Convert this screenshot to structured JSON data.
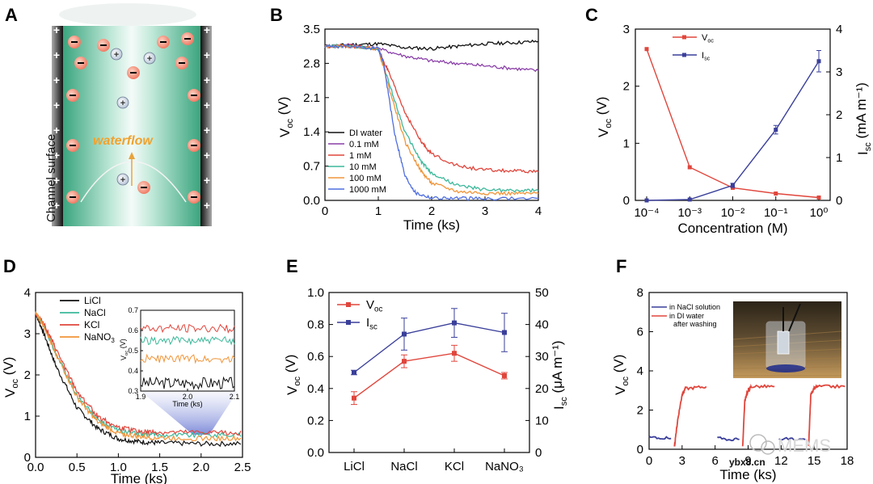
{
  "panels": {
    "A": {
      "label": "A",
      "channel_label": "Channel surface",
      "flow_label": "waterflow"
    },
    "B": {
      "label": "B"
    },
    "C": {
      "label": "C"
    },
    "D": {
      "label": "D"
    },
    "E": {
      "label": "E"
    },
    "F": {
      "label": "F",
      "photo_desc_icon": "beaker-photo"
    }
  },
  "watermark": {
    "text": "MEMS",
    "site": "ybx8.cn"
  },
  "colors": {
    "black": "#111111",
    "purple": "#8a3fa8",
    "red": "#e0463c",
    "teal": "#3cb89a",
    "orange": "#f0953a",
    "blue": "#4f6ee0",
    "navy": "#3a3f9a",
    "green": "#2f9e86"
  },
  "chart_data": [
    {
      "id": "B",
      "type": "line",
      "xlabel": "Time (ks)",
      "ylabel": "Voc (V)",
      "xlim": [
        0,
        4
      ],
      "ylim": [
        0,
        3.5
      ],
      "xticks": [
        "0",
        "1",
        "2",
        "3",
        "4"
      ],
      "yticks": [
        "0.0",
        "0.7",
        "1.4",
        "2.1",
        "2.8",
        "3.5"
      ],
      "series": [
        {
          "name": "DI water",
          "color": "#111111",
          "x": [
            0,
            0.5,
            1,
            1.5,
            2,
            2.5,
            3,
            3.5,
            4
          ],
          "y": [
            3.15,
            3.18,
            3.2,
            3.12,
            3.1,
            3.15,
            3.2,
            3.22,
            3.25
          ]
        },
        {
          "name": "0.1 mM",
          "color": "#8a3fa8",
          "x": [
            0,
            0.5,
            1,
            1.5,
            2,
            2.5,
            3,
            3.5,
            4
          ],
          "y": [
            3.15,
            3.18,
            3.1,
            2.95,
            2.85,
            2.8,
            2.75,
            2.7,
            2.65
          ]
        },
        {
          "name": "1 mM",
          "color": "#e0463c",
          "x": [
            0,
            0.5,
            1,
            1.2,
            1.5,
            1.8,
            2,
            2.5,
            3,
            3.5,
            4
          ],
          "y": [
            3.15,
            3.15,
            3.1,
            2.6,
            1.8,
            1.2,
            0.95,
            0.7,
            0.62,
            0.6,
            0.58
          ]
        },
        {
          "name": "10 mM",
          "color": "#3cb89a",
          "x": [
            0,
            0.5,
            1,
            1.2,
            1.5,
            1.8,
            2,
            2.5,
            3,
            3.5,
            4
          ],
          "y": [
            3.15,
            3.15,
            3.1,
            2.4,
            1.4,
            0.8,
            0.55,
            0.3,
            0.22,
            0.2,
            0.2
          ]
        },
        {
          "name": "100 mM",
          "color": "#f0953a",
          "x": [
            0,
            0.5,
            1,
            1.2,
            1.5,
            1.8,
            2,
            2.5,
            3,
            3.5,
            4
          ],
          "y": [
            3.15,
            3.15,
            3.1,
            2.3,
            1.2,
            0.6,
            0.35,
            0.18,
            0.15,
            0.14,
            0.14
          ]
        },
        {
          "name": "1000 mM",
          "color": "#4f6ee0",
          "x": [
            0,
            0.5,
            1,
            1.1,
            1.3,
            1.5,
            1.7,
            2,
            2.5,
            3,
            4
          ],
          "y": [
            3.15,
            3.15,
            3.1,
            2.8,
            1.4,
            0.5,
            0.15,
            0.05,
            0.04,
            0.04,
            0.04
          ]
        }
      ]
    },
    {
      "id": "C",
      "type": "line",
      "xlabel": "Concentration (M)",
      "ylabel": "Voc (V)",
      "y2label": "Isc (mA m⁻¹)",
      "x": [
        -4,
        -3,
        -2,
        -1,
        0
      ],
      "xticks": [
        "10⁻⁴",
        "10⁻³",
        "10⁻²",
        "10⁻¹",
        "10⁰"
      ],
      "ylim": [
        0,
        3
      ],
      "y2lim": [
        0,
        4
      ],
      "yticks": [
        "0",
        "1",
        "2",
        "3"
      ],
      "y2ticks": [
        "0",
        "1",
        "2",
        "3",
        "4"
      ],
      "series": [
        {
          "name": "Voc",
          "color": "#e0463c",
          "axis": "left",
          "values": [
            2.65,
            0.58,
            0.22,
            0.12,
            0.05
          ]
        },
        {
          "name": "Isc",
          "color": "#3a3f9a",
          "axis": "right",
          "values": [
            0.0,
            0.02,
            0.35,
            1.65,
            3.25
          ],
          "errors": [
            0,
            0,
            0.05,
            0.1,
            0.25
          ]
        }
      ]
    },
    {
      "id": "D",
      "type": "line",
      "xlabel": "Time (ks)",
      "ylabel": "Voc (V)",
      "xlim": [
        0,
        2.5
      ],
      "ylim": [
        0,
        4
      ],
      "xticks": [
        "0.0",
        "0.5",
        "1.0",
        "1.5",
        "2.0",
        "2.5"
      ],
      "yticks": [
        "0",
        "1",
        "2",
        "3",
        "4"
      ],
      "series": [
        {
          "name": "LiCl",
          "color": "#111111",
          "x": [
            0,
            0.1,
            0.25,
            0.5,
            0.75,
            1,
            1.25,
            1.5,
            2,
            2.5
          ],
          "y": [
            3.5,
            3.0,
            2.2,
            1.2,
            0.7,
            0.45,
            0.38,
            0.35,
            0.33,
            0.33
          ]
        },
        {
          "name": "NaCl",
          "color": "#3cb89a",
          "x": [
            0,
            0.1,
            0.25,
            0.5,
            0.75,
            1,
            1.25,
            1.5,
            2,
            2.5
          ],
          "y": [
            3.5,
            3.2,
            2.5,
            1.5,
            0.9,
            0.65,
            0.57,
            0.55,
            0.55,
            0.55
          ]
        },
        {
          "name": "KCl",
          "color": "#e0463c",
          "x": [
            0,
            0.1,
            0.25,
            0.5,
            0.75,
            1,
            1.25,
            1.5,
            2,
            2.5
          ],
          "y": [
            3.5,
            3.25,
            2.6,
            1.6,
            1.0,
            0.72,
            0.63,
            0.6,
            0.6,
            0.6
          ]
        },
        {
          "name": "NaNO3",
          "color": "#f0953a",
          "x": [
            0,
            0.1,
            0.25,
            0.5,
            0.75,
            1,
            1.25,
            1.5,
            2,
            2.5
          ],
          "y": [
            3.5,
            3.2,
            2.5,
            1.45,
            0.85,
            0.58,
            0.5,
            0.47,
            0.46,
            0.46
          ]
        }
      ],
      "inset": {
        "xlim": [
          1.9,
          2.1
        ],
        "ylim": [
          0.3,
          0.7
        ],
        "xticks": [
          "1.9",
          "2.0",
          "2.1"
        ],
        "yticks": [
          "0.3",
          "0.4",
          "0.5",
          "0.6",
          "0.7"
        ],
        "xlabel": "Time (ks)",
        "ylabel": "Voc (V)"
      }
    },
    {
      "id": "E",
      "type": "line",
      "categories": [
        "LiCl",
        "NaCl",
        "KCl",
        "NaNO₃"
      ],
      "ylabel": "Voc (V)",
      "y2label": "Isc (μA m⁻¹)",
      "ylim": [
        0,
        1.0
      ],
      "y2lim": [
        0,
        50
      ],
      "yticks": [
        "0.0",
        "0.2",
        "0.4",
        "0.6",
        "0.8",
        "1.0"
      ],
      "y2ticks": [
        "0",
        "10",
        "20",
        "30",
        "40",
        "50"
      ],
      "series": [
        {
          "name": "Voc",
          "color": "#e0463c",
          "axis": "left",
          "values": [
            0.34,
            0.57,
            0.62,
            0.48
          ],
          "errors": [
            0.04,
            0.04,
            0.05,
            0.02
          ]
        },
        {
          "name": "Isc",
          "color": "#3a3f9a",
          "axis": "right",
          "values": [
            25,
            37,
            40.5,
            37.5
          ],
          "errors": [
            0.7,
            5,
            4.5,
            6
          ]
        }
      ]
    },
    {
      "id": "F",
      "type": "line",
      "xlabel": "Time (ks)",
      "ylabel": "Voc (V)",
      "xlim": [
        0,
        18
      ],
      "ylim": [
        0,
        8
      ],
      "xticks": [
        "0",
        "3",
        "6",
        "9",
        "12",
        "15",
        "18"
      ],
      "yticks": [
        "0",
        "2",
        "4",
        "6",
        "8"
      ],
      "series": [
        {
          "name": "in NaCl solution",
          "color": "#3a3f9a",
          "segments": [
            [
              [
                0,
                0.6
              ],
              [
                2,
                0.55
              ]
            ],
            [
              [
                6.2,
                0.55
              ],
              [
                8.2,
                0.5
              ]
            ],
            [
              [
                11.8,
                0.55
              ],
              [
                14.2,
                0.5
              ]
            ]
          ]
        },
        {
          "name": "in DI water after washing",
          "color": "#e0463c",
          "segments": [
            [
              [
                2.3,
                0.1
              ],
              [
                2.6,
                1.5
              ],
              [
                3,
                2.8
              ],
              [
                3.3,
                3.1
              ],
              [
                5.2,
                3.2
              ]
            ],
            [
              [
                8.5,
                0.1
              ],
              [
                8.7,
                2.5
              ],
              [
                9,
                3.0
              ],
              [
                9.3,
                3.2
              ],
              [
                11.4,
                3.2
              ]
            ],
            [
              [
                14.5,
                0.1
              ],
              [
                14.7,
                2.8
              ],
              [
                15,
                3.1
              ],
              [
                15.3,
                3.2
              ],
              [
                17.8,
                3.2
              ]
            ]
          ]
        }
      ]
    }
  ]
}
